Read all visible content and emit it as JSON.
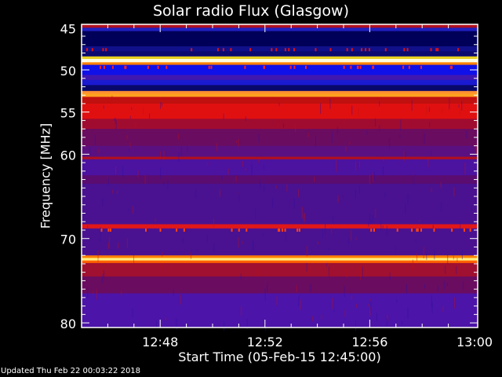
{
  "chart_data": {
    "type": "heatmap",
    "title": "Solar radio Flux (Glasgow)",
    "xlabel": "Start Time (05-Feb-15 12:45:00)",
    "ylabel": "Frequency [MHz]",
    "xlim": [
      "12:45",
      "13:00"
    ],
    "ylim": [
      44.6,
      80.55
    ],
    "y_inverted": true,
    "x_ticks": [
      "12:48",
      "12:52",
      "12:56",
      "13:00"
    ],
    "y_ticks": [
      45,
      50,
      55,
      60,
      70,
      80
    ],
    "background_color": "#4a1290",
    "bands": [
      {
        "from": 44.6,
        "to": 45.0,
        "color": "#b01020"
      },
      {
        "from": 45.0,
        "to": 45.4,
        "color": "#2020c0"
      },
      {
        "from": 45.4,
        "to": 47.2,
        "color": "#000058"
      },
      {
        "from": 47.2,
        "to": 47.8,
        "color": "#10108a"
      },
      {
        "from": 47.8,
        "to": 48.4,
        "color": "#0a0a70"
      },
      {
        "from": 48.4,
        "to": 48.7,
        "color": "#e8d020"
      },
      {
        "from": 48.7,
        "to": 49.1,
        "color": "#ffffe0"
      },
      {
        "from": 49.1,
        "to": 49.4,
        "color": "#ff8000"
      },
      {
        "from": 49.4,
        "to": 50.6,
        "color": "#1010e8"
      },
      {
        "from": 50.6,
        "to": 51.2,
        "color": "#4018b0"
      },
      {
        "from": 51.2,
        "to": 51.8,
        "color": "#1a1ad0"
      },
      {
        "from": 51.8,
        "to": 52.5,
        "color": "#08086a"
      },
      {
        "from": 52.5,
        "to": 52.8,
        "color": "#ff9030"
      },
      {
        "from": 52.8,
        "to": 53.2,
        "color": "#ffa020"
      },
      {
        "from": 53.2,
        "to": 54.0,
        "color": "#c01010"
      },
      {
        "from": 54.0,
        "to": 55.8,
        "color": "#e01010"
      },
      {
        "from": 55.8,
        "to": 57.0,
        "color": "#a00c30"
      },
      {
        "from": 57.0,
        "to": 59.0,
        "color": "#6a0c60"
      },
      {
        "from": 59.0,
        "to": 60.3,
        "color": "#5a1080"
      },
      {
        "from": 60.3,
        "to": 60.6,
        "color": "#b01020"
      },
      {
        "from": 60.6,
        "to": 62.5,
        "color": "#4c12a0"
      },
      {
        "from": 62.5,
        "to": 63.5,
        "color": "#5a0c70"
      },
      {
        "from": 63.5,
        "to": 68.3,
        "color": "#4a1290"
      },
      {
        "from": 68.3,
        "to": 68.8,
        "color": "#e01818"
      },
      {
        "from": 68.8,
        "to": 72.0,
        "color": "#4a1290"
      },
      {
        "from": 72.0,
        "to": 72.3,
        "color": "#ff8000"
      },
      {
        "from": 72.3,
        "to": 72.6,
        "color": "#fff080"
      },
      {
        "from": 72.6,
        "to": 72.9,
        "color": "#ff6000"
      },
      {
        "from": 72.9,
        "to": 74.5,
        "color": "#a01030"
      },
      {
        "from": 74.5,
        "to": 76.5,
        "color": "#6a0c60"
      },
      {
        "from": 76.5,
        "to": 80.55,
        "color": "#4c14a8"
      }
    ],
    "burst_rows": [
      {
        "freq": 47.6,
        "color": "#e01010"
      },
      {
        "freq": 49.7,
        "color": "#ff2020"
      },
      {
        "freq": 69.0,
        "color": "#ff4010"
      }
    ]
  },
  "footer": {
    "updated": "Updated Thu Feb 22 00:03:22 2018"
  }
}
